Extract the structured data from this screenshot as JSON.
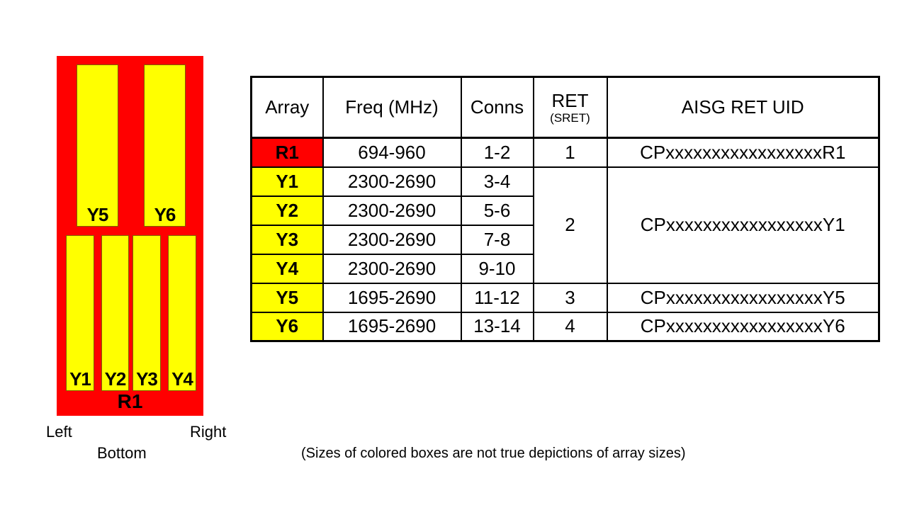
{
  "colors": {
    "red": "#FF0000",
    "yellow": "#FFFF00"
  },
  "diagram": {
    "red_label": "R1",
    "top_boxes": [
      {
        "label": "Y5"
      },
      {
        "label": "Y6"
      }
    ],
    "bottom_boxes": [
      {
        "label": "Y1"
      },
      {
        "label": "Y2"
      },
      {
        "label": "Y3"
      },
      {
        "label": "Y4"
      }
    ],
    "orientation": {
      "left": "Left",
      "right": "Right",
      "bottom": "Bottom"
    }
  },
  "table": {
    "headers": [
      "Array",
      "Freq (MHz)",
      "Conns",
      "RET",
      "AISG RET UID"
    ],
    "ret_subheader": "(SRET)",
    "rows": [
      {
        "array": "R1",
        "freq": "694-960",
        "conns": "1-2",
        "ret": "1",
        "uid": "CPxxxxxxxxxxxxxxxxxR1"
      },
      {
        "array": "Y1",
        "freq": "2300-2690",
        "conns": "3-4",
        "ret": "2",
        "uid": "CPxxxxxxxxxxxxxxxxxY1"
      },
      {
        "array": "Y2",
        "freq": "2300-2690",
        "conns": "5-6"
      },
      {
        "array": "Y3",
        "freq": "2300-2690",
        "conns": "7-8"
      },
      {
        "array": "Y4",
        "freq": "2300-2690",
        "conns": "9-10"
      },
      {
        "array": "Y5",
        "freq": "1695-2690",
        "conns": "11-12",
        "ret": "3",
        "uid": "CPxxxxxxxxxxxxxxxxxY5"
      },
      {
        "array": "Y6",
        "freq": "1695-2690",
        "conns": "13-14",
        "ret": "4",
        "uid": "CPxxxxxxxxxxxxxxxxxY6"
      }
    ]
  },
  "note": "(Sizes of colored boxes are not true depictions of array sizes)"
}
